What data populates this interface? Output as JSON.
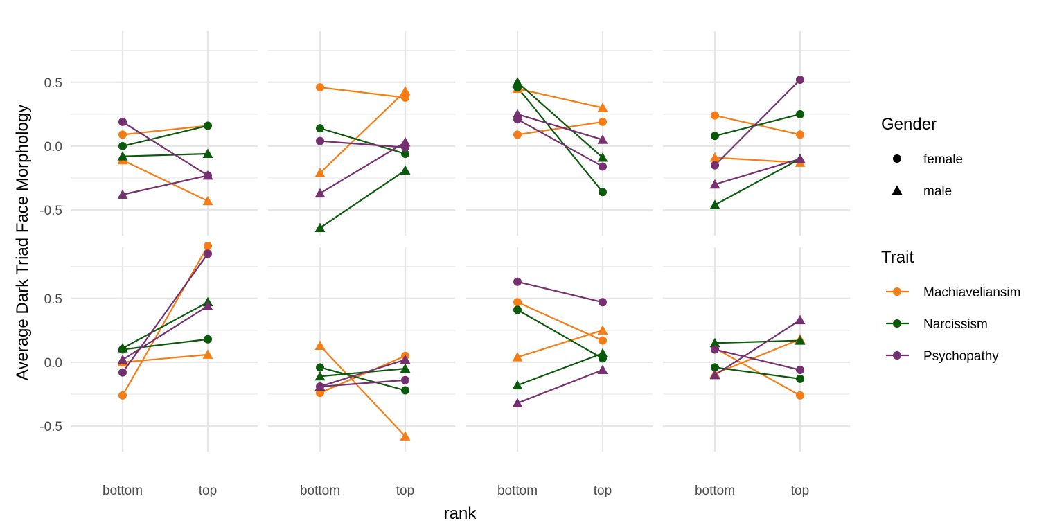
{
  "chart_data": {
    "type": "line",
    "facet_layout": "4 columns x 2 rows",
    "xlabel": "rank",
    "ylabel": "Average Dark Triad Face Morphology",
    "categories": [
      "bottom",
      "top"
    ],
    "ylim": [
      -0.7,
      0.9
    ],
    "yticks": [
      {
        "value": 0.5,
        "label": "0.5"
      },
      {
        "value": 0.0,
        "label": "0.0"
      },
      {
        "value": -0.5,
        "label": "-0.5"
      }
    ],
    "grid": true,
    "legend_position": "right",
    "legends": {
      "gender": {
        "title": "Gender",
        "items": [
          {
            "key": "female",
            "label": "female",
            "shape": "circle"
          },
          {
            "key": "male",
            "label": "male",
            "shape": "triangle"
          }
        ]
      },
      "trait": {
        "title": "Trait",
        "items": [
          {
            "key": "Machiaveliansim",
            "label": "Machiaveliansim",
            "color": "#F57D15"
          },
          {
            "key": "Narcissism",
            "label": "Narcissism",
            "color": "#0B5A0B"
          },
          {
            "key": "Psychopathy",
            "label": "Psychopathy",
            "color": "#74306F"
          }
        ]
      }
    },
    "panels": [
      {
        "series": [
          {
            "trait": "Machiaveliansim",
            "gender": "female",
            "values": [
              0.09,
              0.16
            ]
          },
          {
            "trait": "Machiaveliansim",
            "gender": "male",
            "values": [
              -0.11,
              -0.43
            ]
          },
          {
            "trait": "Narcissism",
            "gender": "female",
            "values": [
              0.0,
              0.16
            ]
          },
          {
            "trait": "Narcissism",
            "gender": "male",
            "values": [
              -0.08,
              -0.06
            ]
          },
          {
            "trait": "Psychopathy",
            "gender": "female",
            "values": [
              0.19,
              -0.23
            ]
          },
          {
            "trait": "Psychopathy",
            "gender": "male",
            "values": [
              -0.38,
              -0.23
            ]
          }
        ]
      },
      {
        "series": [
          {
            "trait": "Machiaveliansim",
            "gender": "female",
            "values": [
              0.46,
              0.38
            ]
          },
          {
            "trait": "Machiaveliansim",
            "gender": "male",
            "values": [
              -0.21,
              0.43
            ]
          },
          {
            "trait": "Narcissism",
            "gender": "female",
            "values": [
              0.14,
              -0.06
            ]
          },
          {
            "trait": "Narcissism",
            "gender": "male",
            "values": [
              -0.64,
              -0.19
            ]
          },
          {
            "trait": "Psychopathy",
            "gender": "female",
            "values": [
              0.04,
              -0.01
            ]
          },
          {
            "trait": "Psychopathy",
            "gender": "male",
            "values": [
              -0.37,
              0.03
            ]
          }
        ]
      },
      {
        "series": [
          {
            "trait": "Machiaveliansim",
            "gender": "female",
            "values": [
              0.09,
              0.19
            ]
          },
          {
            "trait": "Machiaveliansim",
            "gender": "male",
            "values": [
              0.45,
              0.3
            ]
          },
          {
            "trait": "Narcissism",
            "gender": "female",
            "values": [
              0.46,
              -0.36
            ]
          },
          {
            "trait": "Narcissism",
            "gender": "male",
            "values": [
              0.5,
              -0.09
            ]
          },
          {
            "trait": "Psychopathy",
            "gender": "female",
            "values": [
              0.21,
              -0.16
            ]
          },
          {
            "trait": "Psychopathy",
            "gender": "male",
            "values": [
              0.25,
              0.05
            ]
          }
        ]
      },
      {
        "series": [
          {
            "trait": "Machiaveliansim",
            "gender": "female",
            "values": [
              0.24,
              0.09
            ]
          },
          {
            "trait": "Machiaveliansim",
            "gender": "male",
            "values": [
              -0.09,
              -0.13
            ]
          },
          {
            "trait": "Narcissism",
            "gender": "female",
            "values": [
              0.08,
              0.25
            ]
          },
          {
            "trait": "Narcissism",
            "gender": "male",
            "values": [
              -0.46,
              -0.1
            ]
          },
          {
            "trait": "Psychopathy",
            "gender": "female",
            "values": [
              -0.15,
              0.52
            ]
          },
          {
            "trait": "Psychopathy",
            "gender": "male",
            "values": [
              -0.3,
              -0.1
            ]
          }
        ]
      },
      {
        "series": [
          {
            "trait": "Machiaveliansim",
            "gender": "female",
            "values": [
              -0.26,
              0.91
            ]
          },
          {
            "trait": "Machiaveliansim",
            "gender": "male",
            "values": [
              0.0,
              0.06
            ]
          },
          {
            "trait": "Narcissism",
            "gender": "female",
            "values": [
              0.1,
              0.18
            ]
          },
          {
            "trait": "Narcissism",
            "gender": "male",
            "values": [
              0.11,
              0.47
            ]
          },
          {
            "trait": "Psychopathy",
            "gender": "female",
            "values": [
              -0.08,
              0.85
            ]
          },
          {
            "trait": "Psychopathy",
            "gender": "male",
            "values": [
              0.02,
              0.44
            ]
          }
        ]
      },
      {
        "series": [
          {
            "trait": "Machiaveliansim",
            "gender": "female",
            "values": [
              -0.24,
              0.05
            ]
          },
          {
            "trait": "Machiaveliansim",
            "gender": "male",
            "values": [
              0.13,
              -0.58
            ]
          },
          {
            "trait": "Narcissism",
            "gender": "female",
            "values": [
              -0.04,
              -0.22
            ]
          },
          {
            "trait": "Narcissism",
            "gender": "male",
            "values": [
              -0.11,
              -0.05
            ]
          },
          {
            "trait": "Psychopathy",
            "gender": "female",
            "values": [
              -0.19,
              -0.14
            ]
          },
          {
            "trait": "Psychopathy",
            "gender": "male",
            "values": [
              -0.19,
              0.02
            ]
          }
        ]
      },
      {
        "series": [
          {
            "trait": "Machiaveliansim",
            "gender": "female",
            "values": [
              0.47,
              0.17
            ]
          },
          {
            "trait": "Machiaveliansim",
            "gender": "male",
            "values": [
              0.04,
              0.25
            ]
          },
          {
            "trait": "Narcissism",
            "gender": "female",
            "values": [
              0.41,
              0.03
            ]
          },
          {
            "trait": "Narcissism",
            "gender": "male",
            "values": [
              -0.18,
              0.07
            ]
          },
          {
            "trait": "Psychopathy",
            "gender": "female",
            "values": [
              0.63,
              0.47
            ]
          },
          {
            "trait": "Psychopathy",
            "gender": "male",
            "values": [
              -0.32,
              -0.06
            ]
          }
        ]
      },
      {
        "series": [
          {
            "trait": "Machiaveliansim",
            "gender": "female",
            "values": [
              0.11,
              -0.26
            ]
          },
          {
            "trait": "Machiaveliansim",
            "gender": "male",
            "values": [
              -0.09,
              0.18
            ]
          },
          {
            "trait": "Narcissism",
            "gender": "female",
            "values": [
              -0.04,
              -0.13
            ]
          },
          {
            "trait": "Narcissism",
            "gender": "male",
            "values": [
              0.15,
              0.17
            ]
          },
          {
            "trait": "Psychopathy",
            "gender": "female",
            "values": [
              0.1,
              -0.06
            ]
          },
          {
            "trait": "Psychopathy",
            "gender": "male",
            "values": [
              -0.1,
              0.33
            ]
          }
        ]
      }
    ]
  }
}
